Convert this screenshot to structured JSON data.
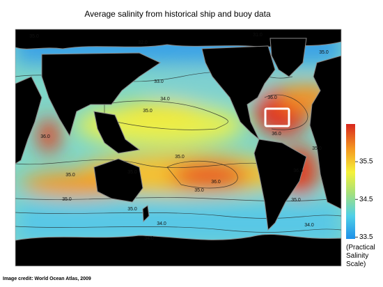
{
  "title": "Average salinity from historical ship and buoy data",
  "credit": "Image credit: World Ocean Atlas, 2009",
  "colorbar": {
    "min": 33.45,
    "max": 36.5,
    "ticks": [
      33.5,
      34.5,
      35.5
    ],
    "label": "(Practical Salinity Scale)"
  },
  "contour_labels": [
    "35.0",
    "32.0",
    "31.0",
    "35.0",
    "33.0",
    "34.0",
    "35.0",
    "36.0",
    "36.0",
    "36.0",
    "35.0",
    "35.0",
    "35.0",
    "36.0",
    "35.0",
    "36.0",
    "35.0",
    "35.0",
    "35.0",
    "34.0",
    "34.0",
    "34.0",
    "35.0"
  ]
}
